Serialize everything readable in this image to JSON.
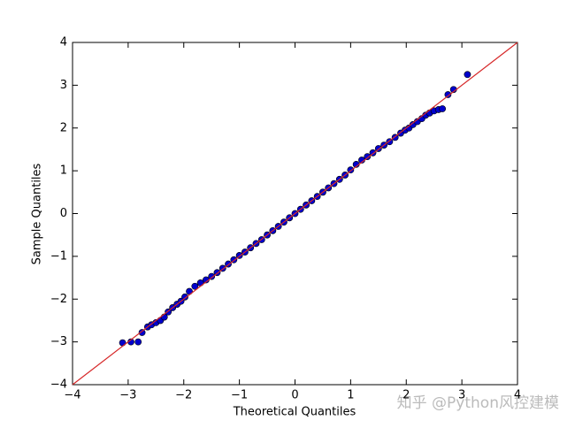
{
  "chart_data": {
    "type": "scatter",
    "x_label": "Theoretical Quantiles",
    "y_label": "Sample Quantiles",
    "series": [
      {
        "color": "#0000cc",
        "x": [
          -3.1,
          -2.95,
          -2.82,
          -2.75,
          -2.65,
          -2.58,
          -2.5,
          -2.42,
          -2.35,
          -2.28,
          -2.2,
          -2.12,
          -2.05,
          -1.98,
          -1.9,
          -1.8,
          -1.7,
          -1.6,
          -1.5,
          -1.4,
          -1.3,
          -1.2,
          -1.1,
          -1.0,
          -0.9,
          -0.8,
          -0.7,
          -0.6,
          -0.5,
          -0.4,
          -0.3,
          -0.2,
          -0.1,
          0,
          0.1,
          0.2,
          0.3,
          0.4,
          0.5,
          0.6,
          0.7,
          0.8,
          0.9,
          1.0,
          1.1,
          1.2,
          1.3,
          1.4,
          1.5,
          1.6,
          1.7,
          1.8,
          1.9,
          1.98,
          2.05,
          2.12,
          2.2,
          2.28,
          2.35,
          2.42,
          2.5,
          2.58,
          2.65,
          2.75,
          2.85,
          3.1
        ],
        "values": [
          -3.02,
          -3.0,
          -3.0,
          -2.78,
          -2.65,
          -2.6,
          -2.55,
          -2.5,
          -2.42,
          -2.3,
          -2.2,
          -2.12,
          -2.05,
          -1.95,
          -1.82,
          -1.7,
          -1.62,
          -1.55,
          -1.47,
          -1.38,
          -1.28,
          -1.18,
          -1.08,
          -0.98,
          -0.9,
          -0.8,
          -0.7,
          -0.61,
          -0.5,
          -0.4,
          -0.3,
          -0.2,
          -0.1,
          0,
          0.1,
          0.2,
          0.3,
          0.4,
          0.5,
          0.6,
          0.7,
          0.8,
          0.9,
          1.02,
          1.15,
          1.25,
          1.33,
          1.42,
          1.52,
          1.6,
          1.68,
          1.78,
          1.88,
          1.95,
          2.0,
          2.08,
          2.15,
          2.22,
          2.3,
          2.35,
          2.4,
          2.43,
          2.45,
          2.78,
          2.9,
          3.25
        ]
      }
    ],
    "reference_line": {
      "slope": 1,
      "intercept": 0,
      "color": "#d62728"
    },
    "xlim": [
      -4,
      4
    ],
    "ylim": [
      -4,
      4
    ],
    "xticks": [
      {
        "value": -4,
        "label": "−4"
      },
      {
        "value": -3,
        "label": "−3"
      },
      {
        "value": -2,
        "label": "−2"
      },
      {
        "value": -1,
        "label": "−1"
      },
      0,
      1,
      2,
      3,
      4
    ],
    "yticks": [
      {
        "value": -4,
        "label": "−4"
      },
      {
        "value": -3,
        "label": "−3"
      },
      {
        "value": -2,
        "label": "−2"
      },
      {
        "value": -1,
        "label": "−1"
      },
      0,
      1,
      2,
      3,
      4
    ],
    "watermark": "知乎 @Python风控建模"
  }
}
